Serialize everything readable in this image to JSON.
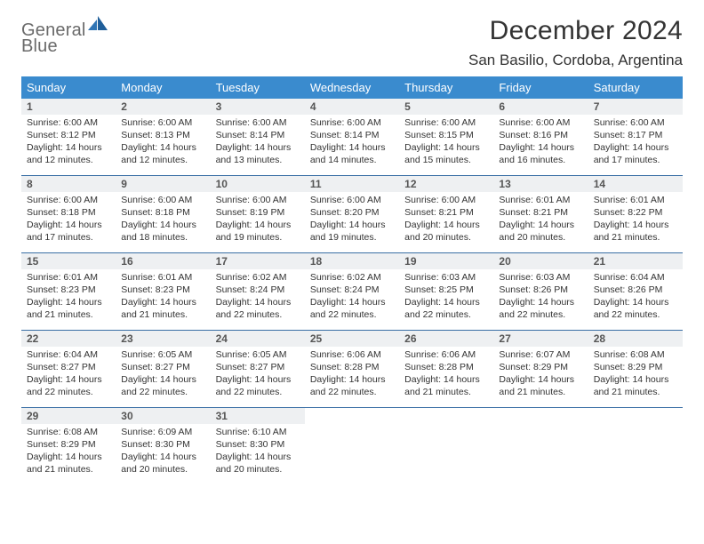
{
  "brand": {
    "word1": "General",
    "word2": "Blue"
  },
  "title": "December 2024",
  "location": "San Basilio, Cordoba, Argentina",
  "colors": {
    "header_bg": "#3a8bce",
    "header_text": "#ffffff",
    "divider": "#3a6fa5",
    "daynum_bg": "#eef0f2",
    "body_text": "#333333",
    "brand_gray": "#6a6a6a",
    "brand_blue": "#2f74b5"
  },
  "day_names": [
    "Sunday",
    "Monday",
    "Tuesday",
    "Wednesday",
    "Thursday",
    "Friday",
    "Saturday"
  ],
  "weeks": [
    [
      {
        "n": "1",
        "sunrise": "6:00 AM",
        "sunset": "8:12 PM",
        "dl": "14 hours and 12 minutes."
      },
      {
        "n": "2",
        "sunrise": "6:00 AM",
        "sunset": "8:13 PM",
        "dl": "14 hours and 12 minutes."
      },
      {
        "n": "3",
        "sunrise": "6:00 AM",
        "sunset": "8:14 PM",
        "dl": "14 hours and 13 minutes."
      },
      {
        "n": "4",
        "sunrise": "6:00 AM",
        "sunset": "8:14 PM",
        "dl": "14 hours and 14 minutes."
      },
      {
        "n": "5",
        "sunrise": "6:00 AM",
        "sunset": "8:15 PM",
        "dl": "14 hours and 15 minutes."
      },
      {
        "n": "6",
        "sunrise": "6:00 AM",
        "sunset": "8:16 PM",
        "dl": "14 hours and 16 minutes."
      },
      {
        "n": "7",
        "sunrise": "6:00 AM",
        "sunset": "8:17 PM",
        "dl": "14 hours and 17 minutes."
      }
    ],
    [
      {
        "n": "8",
        "sunrise": "6:00 AM",
        "sunset": "8:18 PM",
        "dl": "14 hours and 17 minutes."
      },
      {
        "n": "9",
        "sunrise": "6:00 AM",
        "sunset": "8:18 PM",
        "dl": "14 hours and 18 minutes."
      },
      {
        "n": "10",
        "sunrise": "6:00 AM",
        "sunset": "8:19 PM",
        "dl": "14 hours and 19 minutes."
      },
      {
        "n": "11",
        "sunrise": "6:00 AM",
        "sunset": "8:20 PM",
        "dl": "14 hours and 19 minutes."
      },
      {
        "n": "12",
        "sunrise": "6:00 AM",
        "sunset": "8:21 PM",
        "dl": "14 hours and 20 minutes."
      },
      {
        "n": "13",
        "sunrise": "6:01 AM",
        "sunset": "8:21 PM",
        "dl": "14 hours and 20 minutes."
      },
      {
        "n": "14",
        "sunrise": "6:01 AM",
        "sunset": "8:22 PM",
        "dl": "14 hours and 21 minutes."
      }
    ],
    [
      {
        "n": "15",
        "sunrise": "6:01 AM",
        "sunset": "8:23 PM",
        "dl": "14 hours and 21 minutes."
      },
      {
        "n": "16",
        "sunrise": "6:01 AM",
        "sunset": "8:23 PM",
        "dl": "14 hours and 21 minutes."
      },
      {
        "n": "17",
        "sunrise": "6:02 AM",
        "sunset": "8:24 PM",
        "dl": "14 hours and 22 minutes."
      },
      {
        "n": "18",
        "sunrise": "6:02 AM",
        "sunset": "8:24 PM",
        "dl": "14 hours and 22 minutes."
      },
      {
        "n": "19",
        "sunrise": "6:03 AM",
        "sunset": "8:25 PM",
        "dl": "14 hours and 22 minutes."
      },
      {
        "n": "20",
        "sunrise": "6:03 AM",
        "sunset": "8:26 PM",
        "dl": "14 hours and 22 minutes."
      },
      {
        "n": "21",
        "sunrise": "6:04 AM",
        "sunset": "8:26 PM",
        "dl": "14 hours and 22 minutes."
      }
    ],
    [
      {
        "n": "22",
        "sunrise": "6:04 AM",
        "sunset": "8:27 PM",
        "dl": "14 hours and 22 minutes."
      },
      {
        "n": "23",
        "sunrise": "6:05 AM",
        "sunset": "8:27 PM",
        "dl": "14 hours and 22 minutes."
      },
      {
        "n": "24",
        "sunrise": "6:05 AM",
        "sunset": "8:27 PM",
        "dl": "14 hours and 22 minutes."
      },
      {
        "n": "25",
        "sunrise": "6:06 AM",
        "sunset": "8:28 PM",
        "dl": "14 hours and 22 minutes."
      },
      {
        "n": "26",
        "sunrise": "6:06 AM",
        "sunset": "8:28 PM",
        "dl": "14 hours and 21 minutes."
      },
      {
        "n": "27",
        "sunrise": "6:07 AM",
        "sunset": "8:29 PM",
        "dl": "14 hours and 21 minutes."
      },
      {
        "n": "28",
        "sunrise": "6:08 AM",
        "sunset": "8:29 PM",
        "dl": "14 hours and 21 minutes."
      }
    ],
    [
      {
        "n": "29",
        "sunrise": "6:08 AM",
        "sunset": "8:29 PM",
        "dl": "14 hours and 21 minutes."
      },
      {
        "n": "30",
        "sunrise": "6:09 AM",
        "sunset": "8:30 PM",
        "dl": "14 hours and 20 minutes."
      },
      {
        "n": "31",
        "sunrise": "6:10 AM",
        "sunset": "8:30 PM",
        "dl": "14 hours and 20 minutes."
      },
      {
        "empty": true
      },
      {
        "empty": true
      },
      {
        "empty": true
      },
      {
        "empty": true
      }
    ]
  ],
  "labels": {
    "sunrise_prefix": "Sunrise: ",
    "sunset_prefix": "Sunset: ",
    "daylight_prefix": "Daylight: "
  }
}
